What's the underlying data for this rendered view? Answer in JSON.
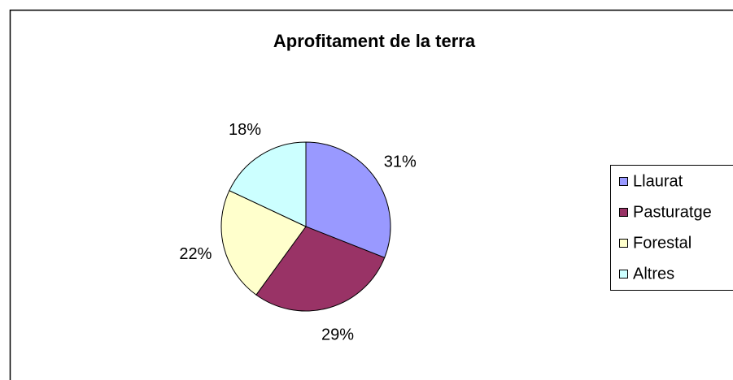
{
  "chart_data": {
    "type": "pie",
    "title": "Aprofitament de la terra",
    "categories": [
      "Llaurat",
      "Pasturatge",
      "Forestal",
      "Altres"
    ],
    "values": [
      31,
      29,
      22,
      18
    ],
    "value_labels": [
      "31%",
      "29%",
      "22%",
      "18%"
    ],
    "colors": [
      "#9999ff",
      "#993366",
      "#ffffcc",
      "#ccffff"
    ],
    "legend": "right"
  }
}
